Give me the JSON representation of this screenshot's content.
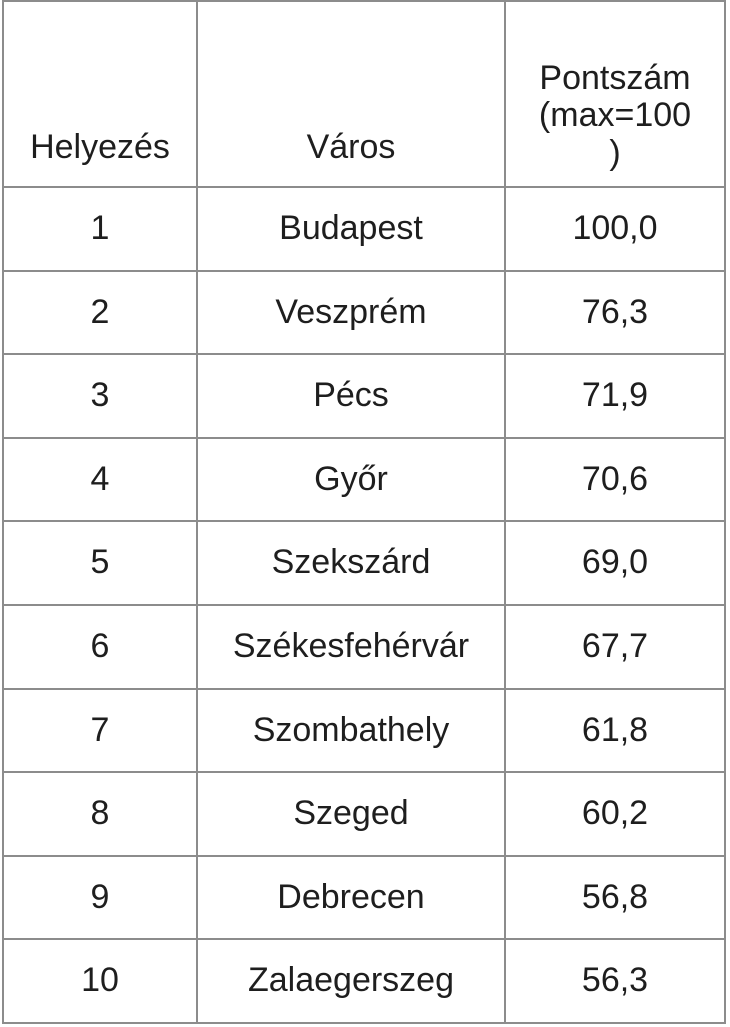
{
  "table": {
    "headers": {
      "rank": "Helyezés",
      "city": "Város",
      "score_lines": [
        "Pontszám",
        "(max=100",
        ")"
      ]
    },
    "rows": [
      {
        "rank": "1",
        "city": "Budapest",
        "score": "100,0"
      },
      {
        "rank": "2",
        "city": "Veszprém",
        "score": "76,3"
      },
      {
        "rank": "3",
        "city": "Pécs",
        "score": "71,9"
      },
      {
        "rank": "4",
        "city": "Győr",
        "score": "70,6"
      },
      {
        "rank": "5",
        "city": "Szekszárd",
        "score": "69,0"
      },
      {
        "rank": "6",
        "city": "Székesfehérvár",
        "score": "67,7"
      },
      {
        "rank": "7",
        "city": "Szombathely",
        "score": "61,8"
      },
      {
        "rank": "8",
        "city": "Szeged",
        "score": "60,2"
      },
      {
        "rank": "9",
        "city": "Debrecen",
        "score": "56,8"
      },
      {
        "rank": "10",
        "city": "Zalaegerszeg",
        "score": "56,3"
      }
    ],
    "colors": {
      "border": "#8c8c8c",
      "text": "#1e1e1e",
      "background": "#ffffff"
    }
  }
}
